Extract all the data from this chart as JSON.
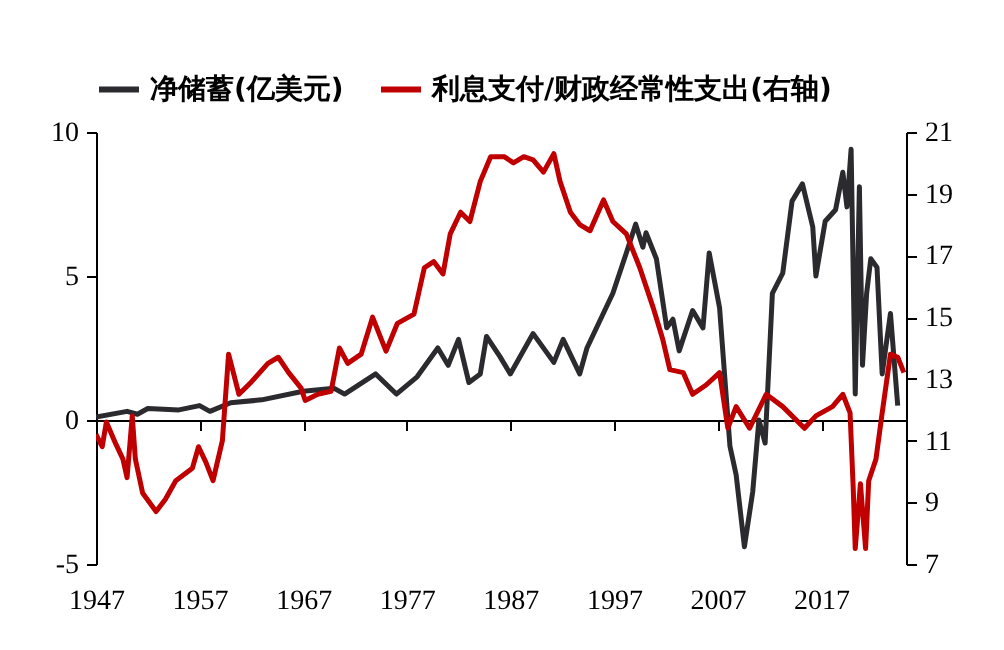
{
  "chart_data": {
    "type": "line",
    "legend": "top",
    "line_style": "solid",
    "xlim": [
      1947,
      2025.2
    ],
    "xticks": [
      1947,
      1957,
      1967,
      1977,
      1987,
      1997,
      2007,
      2017
    ],
    "ylim": [
      -5,
      10
    ],
    "yticks": [
      -5,
      0,
      5,
      10
    ],
    "y2lim": [
      7,
      21
    ],
    "y2ticks": [
      7,
      9,
      11,
      13,
      15,
      17,
      19,
      21
    ],
    "series": [
      {
        "name": "净储蓄(亿美元)",
        "color": "#2b2b2f",
        "x": [
          1947,
          1950,
          1951,
          1952,
          1955,
          1957,
          1958,
          1960,
          1963,
          1967,
          1970,
          1971,
          1974,
          1976,
          1978,
          1980,
          1981,
          1982,
          1983,
          1984.1,
          1984.7,
          1986,
          1987,
          1989.2,
          1991.2,
          1992.1,
          1993.7,
          1994.4,
          1996.9,
          1998.2,
          1999.1,
          1999.8,
          2000.1,
          2001.1,
          2002.1,
          2002.7,
          2003.3,
          2004.6,
          2005.6,
          2006.2,
          2007.2,
          2008.2,
          2008.8,
          2009.6,
          2010.4,
          2011.0,
          2011.6,
          2012.3,
          2013.3,
          2014.2,
          2015.2,
          2016.2,
          2016.5,
          2017.4,
          2018.4,
          2019.1,
          2019.5,
          2019.9,
          2020.3,
          2020.7,
          2021.0,
          2021.4,
          2021.8,
          2022.4,
          2022.9,
          2023.7,
          2024.4
        ],
        "values": [
          0.1,
          0.3,
          0.2,
          0.4,
          0.35,
          0.5,
          0.3,
          0.6,
          0.7,
          1.0,
          1.1,
          0.9,
          1.6,
          0.9,
          1.5,
          2.5,
          1.9,
          2.8,
          1.3,
          1.6,
          2.9,
          2.2,
          1.6,
          3.0,
          2.0,
          2.8,
          1.6,
          2.5,
          4.4,
          5.8,
          6.8,
          6.0,
          6.5,
          5.6,
          3.2,
          3.5,
          2.4,
          3.8,
          3.2,
          5.8,
          3.9,
          -0.9,
          -1.9,
          -4.4,
          -2.5,
          0.0,
          -0.8,
          4.4,
          5.1,
          7.6,
          8.2,
          6.7,
          5.0,
          6.9,
          7.3,
          8.6,
          7.4,
          9.4,
          0.9,
          8.1,
          1.9,
          4.4,
          5.6,
          5.3,
          1.6,
          3.7,
          0.5
        ]
      },
      {
        "name": "利息支付/财政经常性支出(右轴)",
        "color": "#c00000",
        "axis": "y2",
        "x": [
          1947.0,
          1947.6,
          1948.0,
          1948.9,
          1949.6,
          1950.0,
          1950.5,
          1950.8,
          1951.5,
          1952.8,
          1953.7,
          1954.7,
          1956.3,
          1956.9,
          1957.6,
          1958.3,
          1959.2,
          1959.8,
          1960.8,
          1962.0,
          1963.6,
          1964.6,
          1965.6,
          1966.8,
          1967.2,
          1968.4,
          1969.7,
          1970.5,
          1971.3,
          1972.6,
          1973.7,
          1975.0,
          1976.1,
          1977.7,
          1978.7,
          1979.6,
          1980.5,
          1981.2,
          1982.2,
          1983.1,
          1984.1,
          1985.1,
          1986.4,
          1987.3,
          1988.3,
          1989.2,
          1990.2,
          1991.2,
          1991.8,
          1992.8,
          1993.7,
          1994.7,
          1996.0,
          1996.9,
          1998.2,
          1999.5,
          2000.8,
          2001.7,
          2002.4,
          2003.7,
          2004.6,
          2005.9,
          2007.2,
          2008.0,
          2008.8,
          2010.1,
          2011.7,
          2013.3,
          2015.4,
          2016.5,
          2018.1,
          2019.1,
          2019.8,
          2020.1,
          2020.3,
          2020.8,
          2021.3,
          2021.6,
          2022.3,
          2022.9,
          2023.7,
          2024.4,
          2025.0
        ],
        "values": [
          11.2,
          10.8,
          11.6,
          10.9,
          10.4,
          9.8,
          11.8,
          10.4,
          9.3,
          8.7,
          9.1,
          9.7,
          10.1,
          10.8,
          10.3,
          9.7,
          11.0,
          13.8,
          12.5,
          12.9,
          13.5,
          13.7,
          13.2,
          12.7,
          12.3,
          12.5,
          12.6,
          14.0,
          13.5,
          13.8,
          15.0,
          13.9,
          14.8,
          15.1,
          16.6,
          16.8,
          16.4,
          17.7,
          18.4,
          18.1,
          19.4,
          20.2,
          20.2,
          20.0,
          20.2,
          20.1,
          19.7,
          20.3,
          19.4,
          18.4,
          18.0,
          17.8,
          18.8,
          18.1,
          17.7,
          16.6,
          15.3,
          14.3,
          13.3,
          13.2,
          12.5,
          12.8,
          13.2,
          11.4,
          12.1,
          11.4,
          12.5,
          12.1,
          11.4,
          11.8,
          12.1,
          12.5,
          11.9,
          9.5,
          7.5,
          9.6,
          7.5,
          9.7,
          10.4,
          11.9,
          13.8,
          13.7,
          13.2
        ]
      }
    ]
  }
}
